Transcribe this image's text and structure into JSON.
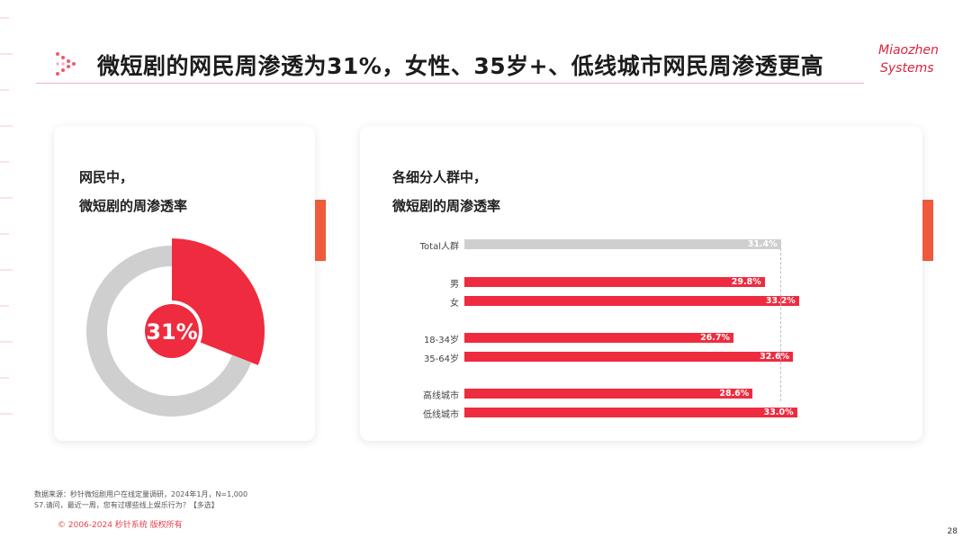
{
  "header": {
    "title": "微短剧的网民周渗透为31%，女性、35岁+、低线城市网民周渗透更高",
    "logo_line1": "Miaozhen",
    "logo_line2": "Systems"
  },
  "left_card": {
    "title_line1": "网民中，",
    "title_line2": "微短剧的周渗透率"
  },
  "right_card": {
    "title_line1": "各细分人群中，",
    "title_line2": "微短剧的周渗透率"
  },
  "chart_data": [
    {
      "type": "pie",
      "values": [
        31,
        69
      ],
      "center_label": "31%",
      "colors": [
        "#ef2b3f",
        "#cfcfcf"
      ]
    },
    {
      "type": "bar",
      "orientation": "horizontal",
      "categories": [
        "Total人群",
        "男",
        "女",
        "18-34岁",
        "35-64岁",
        "高线城市",
        "低线城市"
      ],
      "values": [
        31.4,
        29.8,
        33.2,
        26.7,
        32.6,
        28.6,
        33.0
      ],
      "value_labels": [
        "31.4%",
        "29.8%",
        "33.2%",
        "26.7%",
        "32.6%",
        "28.6%",
        "33.0%"
      ],
      "colors": [
        "#cfcfcf",
        "#ef2b3f",
        "#ef2b3f",
        "#ef2b3f",
        "#ef2b3f",
        "#ef2b3f",
        "#ef2b3f"
      ],
      "reference_line": 31.4,
      "xlim": [
        0,
        35
      ]
    }
  ],
  "footer": {
    "source": "数据来源：秒针微短剧用户在线定量调研，2024年1月，N=1,000",
    "question": "S7.请问，最近一周，您有过哪些线上娱乐行为？【多选】",
    "copyright": "© 2006-2024 秒针系统 版权所有",
    "page": "28"
  }
}
